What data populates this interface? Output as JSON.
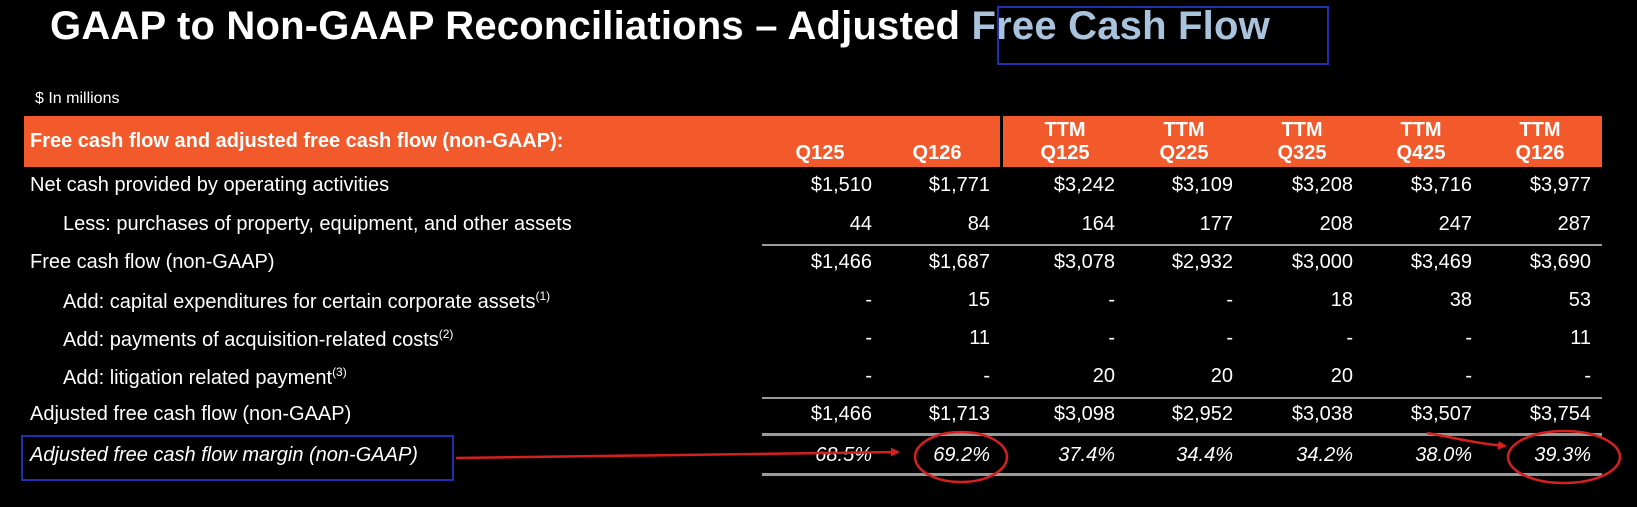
{
  "title": {
    "main": "GAAP to Non-GAAP Reconciliations – Adjusted ",
    "highlight": "Free Cash Flow"
  },
  "unit_note": "$ In millions",
  "header": {
    "label": "Free cash flow and adjusted free cash flow (non-GAAP):",
    "columns": [
      {
        "l1": "",
        "l2": "Q125"
      },
      {
        "l1": "",
        "l2": "Q126"
      },
      {
        "l1": "TTM",
        "l2": "Q125"
      },
      {
        "l1": "TTM",
        "l2": "Q225"
      },
      {
        "l1": "TTM",
        "l2": "Q325"
      },
      {
        "l1": "TTM",
        "l2": "Q425"
      },
      {
        "l1": "TTM",
        "l2": "Q126"
      }
    ]
  },
  "rows": [
    {
      "label": "Net cash provided by operating activities",
      "sup": "",
      "values": [
        "$1,510",
        "$1,771",
        "$3,242",
        "$3,109",
        "$3,208",
        "$3,716",
        "$3,977"
      ]
    },
    {
      "label": "Less: purchases of property, equipment, and other assets",
      "sup": "",
      "values": [
        "44",
        "84",
        "164",
        "177",
        "208",
        "247",
        "287"
      ]
    },
    {
      "label": "Free cash flow (non-GAAP)",
      "sup": "",
      "values": [
        "$1,466",
        "$1,687",
        "$3,078",
        "$2,932",
        "$3,000",
        "$3,469",
        "$3,690"
      ]
    },
    {
      "label": "Add: capital expenditures for certain corporate assets",
      "sup": "(1)",
      "values": [
        "-",
        "15",
        "-",
        "-",
        "18",
        "38",
        "53"
      ]
    },
    {
      "label": "Add: payments of acquisition-related costs",
      "sup": "(2)",
      "values": [
        "-",
        "11",
        "-",
        "-",
        "-",
        "-",
        "11"
      ]
    },
    {
      "label": "Add: litigation related payment",
      "sup": "(3)",
      "values": [
        "-",
        "-",
        "20",
        "20",
        "20",
        "-",
        "-"
      ]
    },
    {
      "label": "Adjusted free cash flow (non-GAAP)",
      "sup": "",
      "values": [
        "$1,466",
        "$1,713",
        "$3,098",
        "$2,952",
        "$3,038",
        "$3,507",
        "$3,754"
      ]
    },
    {
      "label": "Adjusted free cash flow margin (non-GAAP)",
      "sup": "",
      "values": [
        "68.5%",
        "69.2%",
        "37.4%",
        "34.4%",
        "34.2%",
        "38.0%",
        "39.3%"
      ]
    }
  ],
  "colors": {
    "header_bg": "#f25a2b",
    "title_highlight": "#a9c3dc",
    "annotation_red": "#d62020",
    "box_blue": "#1f2fb0"
  }
}
